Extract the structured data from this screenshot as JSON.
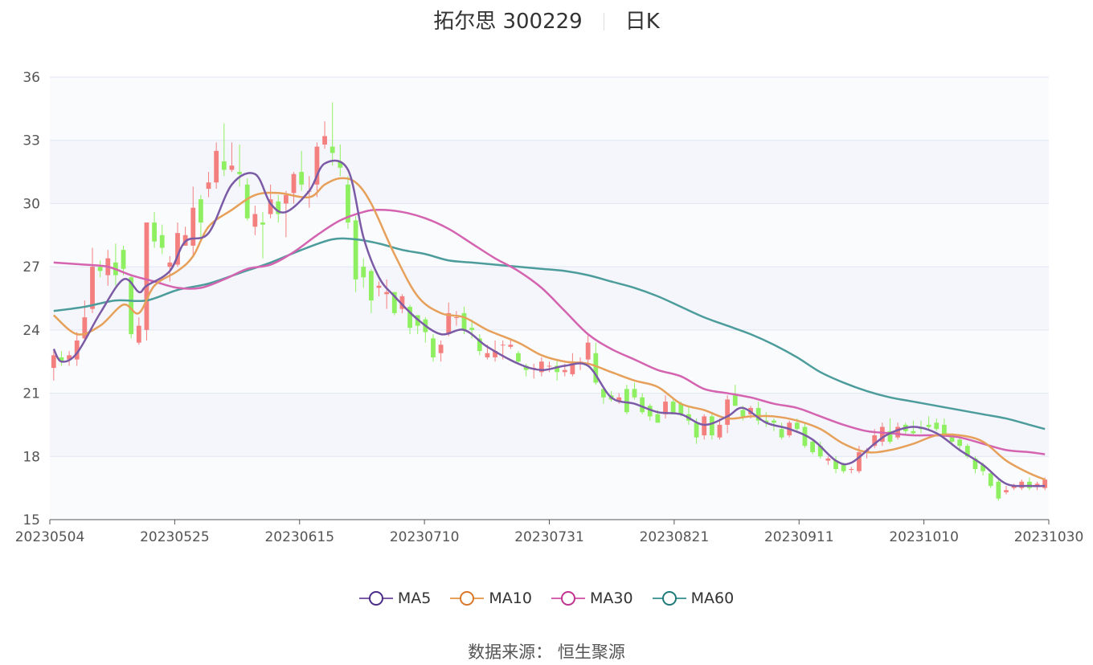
{
  "header": {
    "name_code": "拓尔思 300229",
    "period": "日K"
  },
  "source": "数据来源： 恒生聚源",
  "colors": {
    "up": "#f47f7f",
    "down": "#8ef060",
    "ma5": "#7b5aa6",
    "ma10": "#e6a05a",
    "ma30": "#d463b0",
    "ma60": "#4d9c9c",
    "grid": "#dfe6f2",
    "band": "#f4f6fb"
  },
  "chart_data": {
    "type": "candlestick",
    "x_ticks": [
      "20230504",
      "20230525",
      "20230615",
      "20230710",
      "20230731",
      "20230821",
      "20230911",
      "20231010",
      "20231030"
    ],
    "y_ticks": [
      15,
      18,
      21,
      24,
      27,
      30,
      33,
      36
    ],
    "ylim": [
      15,
      36
    ],
    "legend": [
      "MA5",
      "MA10",
      "MA30",
      "MA60"
    ],
    "candles": [
      [
        22.2,
        22.8,
        23.0,
        21.6
      ],
      [
        22.7,
        22.5,
        23.0,
        22.3
      ],
      [
        22.6,
        22.8,
        23.0,
        22.3
      ],
      [
        22.6,
        23.5,
        23.9,
        22.3
      ],
      [
        23.6,
        24.6,
        25.4,
        23.5
      ],
      [
        25.0,
        27.0,
        27.9,
        24.8
      ],
      [
        27.0,
        26.8,
        27.3,
        26.5
      ],
      [
        26.6,
        27.4,
        27.8,
        26.1
      ],
      [
        27.2,
        26.6,
        28.1,
        26.1
      ],
      [
        27.8,
        26.9,
        28.0,
        26.6
      ],
      [
        26.5,
        23.8,
        26.6,
        23.6
      ],
      [
        23.4,
        24.2,
        24.6,
        23.3
      ],
      [
        24.0,
        29.1,
        29.1,
        23.5
      ],
      [
        29.1,
        28.2,
        29.6,
        27.9
      ],
      [
        28.5,
        27.9,
        29.0,
        27.6
      ],
      [
        27.0,
        27.2,
        27.5,
        26.3
      ],
      [
        27.1,
        28.6,
        29.1,
        27.0
      ],
      [
        28.0,
        28.5,
        28.9,
        28.1
      ],
      [
        28.0,
        29.8,
        30.8,
        27.5
      ],
      [
        30.2,
        29.1,
        30.4,
        28.4
      ],
      [
        30.7,
        31.0,
        31.5,
        30.3
      ],
      [
        31.0,
        32.5,
        32.9,
        30.7
      ],
      [
        32.0,
        31.6,
        33.8,
        31.3
      ],
      [
        31.6,
        31.8,
        32.9,
        31.5
      ],
      [
        31.5,
        31.4,
        32.8,
        30.8
      ],
      [
        30.9,
        29.3,
        31.2,
        29.2
      ],
      [
        28.9,
        29.5,
        29.9,
        28.5
      ],
      [
        29.1,
        29.0,
        29.6,
        27.4
      ],
      [
        29.5,
        30.2,
        30.9,
        29.3
      ],
      [
        30.1,
        29.5,
        30.4,
        29.1
      ],
      [
        30.0,
        30.4,
        30.6,
        28.4
      ],
      [
        30.5,
        31.4,
        31.5,
        30.0
      ],
      [
        31.5,
        30.9,
        32.5,
        30.6
      ],
      [
        30.6,
        30.6,
        31.3,
        29.8
      ],
      [
        30.9,
        32.7,
        32.9,
        30.3
      ],
      [
        32.8,
        33.2,
        33.9,
        32.6
      ],
      [
        32.7,
        32.4,
        34.8,
        31.8
      ],
      [
        32.0,
        31.7,
        32.8,
        31.3
      ],
      [
        30.9,
        29.1,
        31.3,
        28.8
      ],
      [
        29.2,
        26.4,
        29.4,
        25.8
      ],
      [
        27.0,
        26.5,
        27.4,
        26.0
      ],
      [
        26.8,
        25.4,
        26.9,
        24.8
      ],
      [
        26.0,
        26.1,
        26.3,
        25.6
      ],
      [
        25.7,
        25.8,
        26.4,
        25.0
      ],
      [
        25.8,
        24.8,
        25.8,
        24.7
      ],
      [
        25.0,
        25.6,
        25.7,
        24.8
      ],
      [
        25.1,
        24.1,
        25.2,
        23.8
      ],
      [
        24.7,
        24.2,
        24.7,
        23.8
      ],
      [
        24.5,
        23.9,
        24.6,
        23.4
      ],
      [
        23.6,
        22.7,
        23.8,
        22.5
      ],
      [
        22.9,
        23.3,
        23.5,
        22.5
      ],
      [
        23.8,
        24.8,
        25.3,
        23.7
      ],
      [
        24.6,
        24.6,
        24.9,
        24.2
      ],
      [
        24.8,
        24.0,
        25.1,
        23.8
      ],
      [
        24.1,
        24.0,
        24.5,
        23.6
      ],
      [
        23.6,
        23.0,
        23.8,
        22.8
      ],
      [
        22.7,
        22.9,
        23.3,
        22.6
      ],
      [
        22.7,
        23.0,
        23.5,
        22.5
      ],
      [
        23.3,
        23.3,
        23.5,
        22.6
      ],
      [
        23.2,
        23.3,
        23.6,
        23.1
      ],
      [
        22.9,
        22.5,
        23.0,
        22.4
      ],
      [
        22.3,
        22.1,
        22.4,
        21.8
      ],
      [
        22.2,
        22.2,
        22.4,
        21.7
      ],
      [
        22.0,
        22.5,
        22.7,
        21.8
      ],
      [
        22.3,
        22.3,
        22.5,
        22.0
      ],
      [
        22.3,
        22.0,
        22.6,
        21.6
      ],
      [
        22.0,
        22.1,
        22.4,
        21.8
      ],
      [
        21.9,
        22.5,
        22.9,
        21.8
      ],
      [
        22.4,
        22.5,
        22.7,
        22.1
      ],
      [
        22.6,
        23.4,
        23.8,
        22.4
      ],
      [
        22.9,
        21.5,
        23.4,
        21.4
      ],
      [
        21.2,
        20.8,
        21.3,
        20.5
      ],
      [
        20.9,
        20.7,
        21.1,
        20.6
      ],
      [
        20.6,
        20.8,
        21.0,
        20.5
      ],
      [
        21.2,
        20.1,
        21.4,
        20.0
      ],
      [
        21.2,
        20.8,
        21.5,
        20.7
      ],
      [
        20.8,
        20.1,
        21.0,
        20.0
      ],
      [
        20.4,
        19.9,
        20.5,
        19.7
      ],
      [
        20.0,
        19.6,
        20.2,
        19.6
      ],
      [
        20.0,
        20.6,
        20.9,
        19.8
      ],
      [
        20.6,
        20.0,
        20.8,
        20.0
      ],
      [
        20.5,
        20.0,
        20.6,
        19.9
      ],
      [
        20.0,
        19.7,
        20.4,
        19.5
      ],
      [
        19.6,
        18.9,
        19.8,
        18.6
      ],
      [
        19.0,
        19.9,
        20.0,
        18.8
      ],
      [
        19.9,
        19.0,
        20.1,
        18.8
      ],
      [
        18.9,
        19.5,
        19.8,
        18.8
      ],
      [
        19.5,
        20.7,
        20.9,
        19.1
      ],
      [
        20.9,
        20.4,
        21.4,
        20.4
      ],
      [
        20.2,
        19.9,
        20.4,
        19.7
      ],
      [
        20.0,
        20.3,
        20.4,
        19.8
      ],
      [
        20.3,
        19.7,
        20.6,
        19.5
      ],
      [
        19.7,
        19.6,
        20.1,
        19.4
      ],
      [
        19.7,
        19.6,
        19.8,
        19.2
      ],
      [
        19.3,
        18.9,
        19.6,
        18.8
      ],
      [
        19.0,
        19.6,
        19.7,
        18.9
      ],
      [
        19.6,
        19.3,
        19.8,
        19.2
      ],
      [
        19.4,
        18.5,
        19.6,
        18.4
      ],
      [
        18.7,
        18.2,
        18.8,
        18.1
      ],
      [
        18.5,
        18.0,
        18.7,
        17.9
      ],
      [
        17.8,
        17.9,
        18.0,
        17.6
      ],
      [
        17.8,
        17.4,
        18.0,
        17.2
      ],
      [
        17.6,
        17.3,
        17.7,
        17.2
      ],
      [
        17.4,
        17.4,
        17.5,
        17.2
      ],
      [
        17.3,
        18.2,
        18.5,
        17.2
      ],
      [
        18.2,
        18.3,
        18.4,
        17.9
      ],
      [
        18.5,
        19.0,
        19.3,
        18.4
      ],
      [
        18.7,
        19.4,
        19.6,
        18.5
      ],
      [
        19.2,
        18.7,
        19.8,
        18.6
      ],
      [
        18.9,
        19.4,
        19.6,
        18.8
      ],
      [
        19.5,
        19.2,
        19.6,
        19.0
      ],
      [
        19.2,
        19.1,
        19.7,
        19.0
      ],
      [
        19.4,
        19.3,
        19.7,
        19.1
      ],
      [
        19.5,
        19.4,
        19.9,
        19.2
      ],
      [
        19.6,
        19.3,
        19.8,
        19.2
      ],
      [
        19.5,
        19.0,
        19.8,
        18.8
      ],
      [
        19.0,
        18.7,
        19.1,
        18.5
      ],
      [
        18.8,
        18.5,
        19.0,
        18.3
      ],
      [
        18.5,
        18.0,
        18.6,
        17.9
      ],
      [
        17.9,
        17.4,
        18.0,
        17.2
      ],
      [
        17.6,
        17.3,
        17.7,
        17.1
      ],
      [
        17.2,
        16.6,
        17.3,
        16.5
      ],
      [
        16.8,
        16.0,
        16.9,
        15.9
      ],
      [
        16.3,
        16.4,
        16.6,
        16.2
      ],
      [
        16.5,
        16.6,
        16.7,
        16.4
      ],
      [
        16.5,
        16.8,
        16.9,
        16.4
      ],
      [
        16.8,
        16.5,
        17.0,
        16.4
      ],
      [
        16.6,
        16.7,
        16.8,
        16.4
      ],
      [
        16.5,
        16.9,
        17.0,
        16.4
      ]
    ],
    "ma5": [
      [
        0,
        23.1
      ],
      [
        1,
        22.5
      ],
      [
        3,
        22.9
      ],
      [
        6,
        24.8
      ],
      [
        9,
        26.4
      ],
      [
        11,
        25.8
      ],
      [
        12,
        26.1
      ],
      [
        15,
        26.8
      ],
      [
        17,
        28.2
      ],
      [
        20,
        28.6
      ],
      [
        23,
        30.9
      ],
      [
        26,
        31.4
      ],
      [
        28,
        30.0
      ],
      [
        30,
        29.6
      ],
      [
        33,
        30.6
      ],
      [
        35,
        31.9
      ],
      [
        38,
        31.6
      ],
      [
        40,
        28.4
      ],
      [
        42,
        26.5
      ],
      [
        44,
        25.6
      ],
      [
        47,
        24.5
      ],
      [
        50,
        23.8
      ],
      [
        53,
        24.0
      ],
      [
        56,
        23.2
      ],
      [
        60,
        22.4
      ],
      [
        63,
        22.1
      ],
      [
        66,
        22.3
      ],
      [
        69,
        22.3
      ],
      [
        72,
        20.8
      ],
      [
        75,
        20.5
      ],
      [
        78,
        20.1
      ],
      [
        81,
        20.0
      ],
      [
        84,
        19.5
      ],
      [
        87,
        19.9
      ],
      [
        89,
        20.3
      ],
      [
        92,
        19.6
      ],
      [
        95,
        19.3
      ],
      [
        98,
        18.8
      ],
      [
        101,
        17.8
      ],
      [
        103,
        17.7
      ],
      [
        106,
        18.6
      ],
      [
        108,
        19.1
      ],
      [
        111,
        19.4
      ],
      [
        114,
        19.1
      ],
      [
        117,
        18.3
      ],
      [
        120,
        17.6
      ],
      [
        123,
        16.7
      ],
      [
        126,
        16.6
      ],
      [
        128,
        16.6
      ]
    ],
    "ma10": [
      [
        0,
        24.7
      ],
      [
        3,
        23.8
      ],
      [
        6,
        24.2
      ],
      [
        9,
        25.2
      ],
      [
        11,
        24.8
      ],
      [
        13,
        26.1
      ],
      [
        16,
        26.8
      ],
      [
        18,
        27.5
      ],
      [
        20,
        28.9
      ],
      [
        23,
        29.7
      ],
      [
        26,
        30.4
      ],
      [
        29,
        30.5
      ],
      [
        33,
        30.3
      ],
      [
        35,
        30.9
      ],
      [
        37,
        31.2
      ],
      [
        39,
        31.0
      ],
      [
        41,
        30.0
      ],
      [
        44,
        27.6
      ],
      [
        47,
        25.6
      ],
      [
        50,
        24.8
      ],
      [
        53,
        24.6
      ],
      [
        56,
        24.0
      ],
      [
        60,
        23.4
      ],
      [
        63,
        22.8
      ],
      [
        66,
        22.5
      ],
      [
        69,
        22.4
      ],
      [
        72,
        22.0
      ],
      [
        75,
        21.6
      ],
      [
        78,
        21.3
      ],
      [
        81,
        20.5
      ],
      [
        84,
        20.2
      ],
      [
        87,
        19.8
      ],
      [
        90,
        19.9
      ],
      [
        93,
        19.9
      ],
      [
        96,
        19.7
      ],
      [
        99,
        19.3
      ],
      [
        102,
        18.6
      ],
      [
        105,
        18.2
      ],
      [
        108,
        18.3
      ],
      [
        111,
        18.6
      ],
      [
        114,
        19.0
      ],
      [
        117,
        19.0
      ],
      [
        120,
        18.7
      ],
      [
        123,
        17.8
      ],
      [
        126,
        17.2
      ],
      [
        128,
        16.9
      ]
    ],
    "ma30": [
      [
        0,
        27.2
      ],
      [
        4,
        27.1
      ],
      [
        7,
        27.0
      ],
      [
        10,
        26.6
      ],
      [
        13,
        26.3
      ],
      [
        16,
        26.0
      ],
      [
        19,
        26.0
      ],
      [
        22,
        26.4
      ],
      [
        25,
        26.9
      ],
      [
        28,
        27.1
      ],
      [
        31,
        27.7
      ],
      [
        34,
        28.5
      ],
      [
        37,
        29.2
      ],
      [
        40,
        29.6
      ],
      [
        42,
        29.7
      ],
      [
        45,
        29.6
      ],
      [
        48,
        29.3
      ],
      [
        51,
        28.8
      ],
      [
        54,
        28.1
      ],
      [
        57,
        27.4
      ],
      [
        60,
        26.8
      ],
      [
        63,
        26.0
      ],
      [
        66,
        24.9
      ],
      [
        69,
        23.8
      ],
      [
        72,
        23.1
      ],
      [
        75,
        22.6
      ],
      [
        78,
        22.1
      ],
      [
        81,
        21.8
      ],
      [
        84,
        21.2
      ],
      [
        87,
        21.0
      ],
      [
        90,
        20.8
      ],
      [
        93,
        20.5
      ],
      [
        96,
        20.3
      ],
      [
        99,
        19.9
      ],
      [
        102,
        19.5
      ],
      [
        105,
        19.2
      ],
      [
        108,
        19.1
      ],
      [
        111,
        19.0
      ],
      [
        114,
        19.0
      ],
      [
        117,
        18.9
      ],
      [
        120,
        18.6
      ],
      [
        123,
        18.3
      ],
      [
        126,
        18.2
      ],
      [
        128,
        18.1
      ]
    ],
    "ma60": [
      [
        0,
        24.9
      ],
      [
        4,
        25.1
      ],
      [
        8,
        25.4
      ],
      [
        12,
        25.4
      ],
      [
        16,
        25.9
      ],
      [
        20,
        26.2
      ],
      [
        24,
        26.7
      ],
      [
        28,
        27.2
      ],
      [
        32,
        27.8
      ],
      [
        36,
        28.3
      ],
      [
        39,
        28.3
      ],
      [
        42,
        28.1
      ],
      [
        45,
        27.8
      ],
      [
        48,
        27.6
      ],
      [
        51,
        27.3
      ],
      [
        54,
        27.2
      ],
      [
        57,
        27.1
      ],
      [
        60,
        27.0
      ],
      [
        63,
        26.9
      ],
      [
        66,
        26.8
      ],
      [
        69,
        26.6
      ],
      [
        72,
        26.3
      ],
      [
        75,
        26.0
      ],
      [
        78,
        25.6
      ],
      [
        81,
        25.1
      ],
      [
        84,
        24.6
      ],
      [
        87,
        24.2
      ],
      [
        90,
        23.8
      ],
      [
        93,
        23.3
      ],
      [
        96,
        22.7
      ],
      [
        99,
        22.0
      ],
      [
        102,
        21.5
      ],
      [
        105,
        21.1
      ],
      [
        108,
        20.8
      ],
      [
        111,
        20.6
      ],
      [
        114,
        20.4
      ],
      [
        117,
        20.2
      ],
      [
        120,
        20.0
      ],
      [
        123,
        19.8
      ],
      [
        126,
        19.5
      ],
      [
        128,
        19.3
      ]
    ]
  }
}
